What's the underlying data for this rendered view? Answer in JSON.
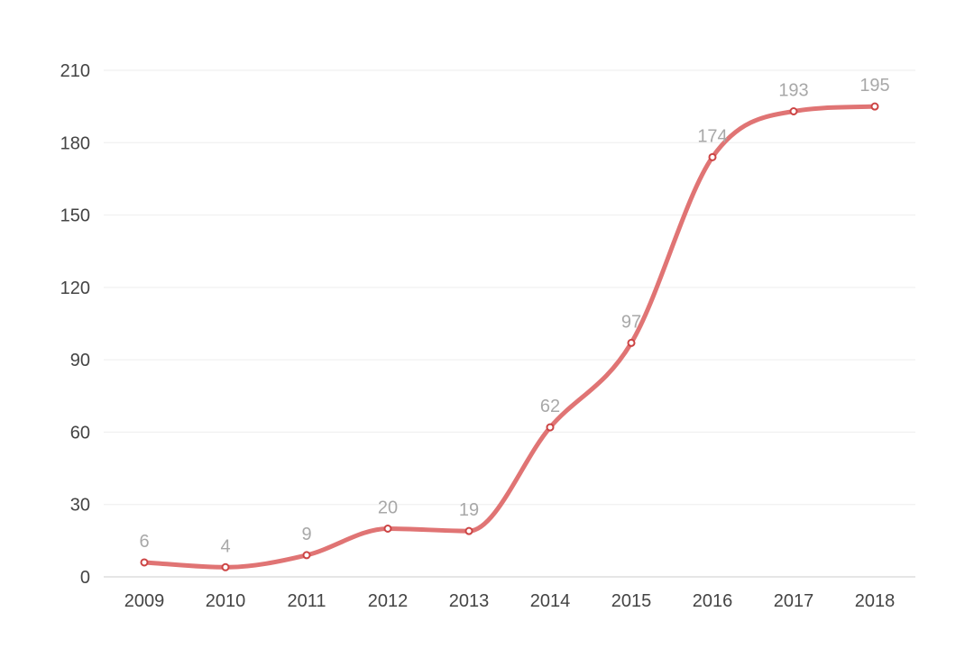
{
  "chart_data": {
    "type": "line",
    "title": "",
    "xlabel": "",
    "ylabel": "",
    "x": [
      "2009",
      "2010",
      "2011",
      "2012",
      "2013",
      "2014",
      "2015",
      "2016",
      "2017",
      "2018"
    ],
    "series": [
      {
        "values": [
          6,
          4,
          9,
          20,
          19,
          62,
          97,
          174,
          193,
          195
        ]
      }
    ],
    "ylim": [
      0,
      210
    ],
    "yticks": [
      0,
      30,
      60,
      90,
      120,
      150,
      180,
      210
    ],
    "grid": true,
    "smooth": true,
    "data_labels": true,
    "colors": {
      "line": "#e07474",
      "point_stroke": "#cc4444"
    }
  }
}
